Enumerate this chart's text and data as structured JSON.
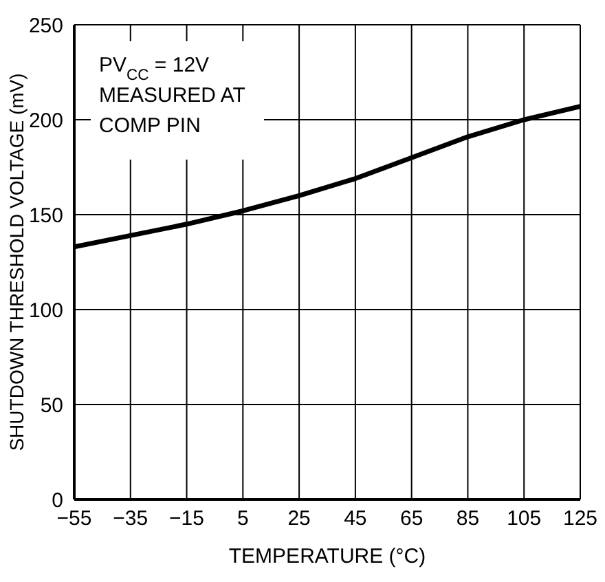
{
  "chart_data": {
    "type": "line",
    "xlabel": "TEMPERATURE (°C)",
    "ylabel": "SHUTDOWN THRESHOLD VOLTAGE (mV)",
    "annotations": [
      "PV$_{CC}$ = 12V",
      "MEASURED AT",
      "COMP PIN"
    ],
    "x": [
      -55,
      -35,
      -15,
      5,
      25,
      45,
      65,
      85,
      105,
      125
    ],
    "series": [
      {
        "color": "#000000",
        "values": [
          133,
          139,
          145,
          152,
          160,
          169,
          180,
          191,
          200,
          207
        ]
      }
    ],
    "xlim": [
      -55,
      125
    ],
    "xticks": [
      {
        "value": -55,
        "label": "−55"
      },
      {
        "value": -35,
        "label": "−35"
      },
      {
        "value": -15,
        "label": "−15"
      },
      5,
      25,
      45,
      65,
      85,
      105,
      125
    ],
    "ylim": [
      0,
      250
    ],
    "yticks": [
      0,
      50,
      100,
      150,
      200,
      250
    ],
    "grid": true,
    "marker": "none",
    "line_style": "solid"
  }
}
